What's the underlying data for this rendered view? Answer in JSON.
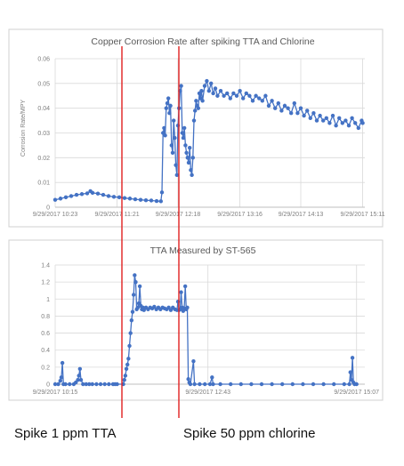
{
  "captions": {
    "left": "Spike 1 ppm TTA",
    "right": "Spike 50 ppm chlorine"
  },
  "colors": {
    "series": "#4472c4",
    "marker": "#e02020",
    "grid": "#d9d9d9",
    "axis": "#bfbfbf",
    "text": "#595959",
    "frame": "#d0d0d0"
  },
  "chart_data": [
    {
      "type": "line",
      "title": "Copper Corrosion Rate after spiking TTA and Chlorine",
      "ylabel": "Corrosion Rate/MPY",
      "xlabel": "",
      "ylim": [
        0,
        0.06
      ],
      "yticks": [
        "0",
        "0.01",
        "0.02",
        "0.03",
        "0.04",
        "0.05",
        "0.06"
      ],
      "xlim": [
        0,
        290
      ],
      "x_unit": "minutes since 9/29/2017 10:23",
      "x_ticks": [
        {
          "x": 0,
          "label": "9/29/2017 10:23"
        },
        {
          "x": 58,
          "label": "9/29/2017 11:21"
        },
        {
          "x": 115,
          "label": "9/29/2017 12:18"
        },
        {
          "x": 173,
          "label": "9/29/2017 13:16"
        },
        {
          "x": 230,
          "label": "9/29/2017 14:13"
        },
        {
          "x": 288,
          "label": "9/29/2017 15:11"
        }
      ],
      "grid": true,
      "legend": "none",
      "series": [
        {
          "points": [
            [
              0,
              0.003
            ],
            [
              5,
              0.0035
            ],
            [
              10,
              0.004
            ],
            [
              15,
              0.0045
            ],
            [
              20,
              0.005
            ],
            [
              25,
              0.0053
            ],
            [
              30,
              0.0056
            ],
            [
              33,
              0.0065
            ],
            [
              35,
              0.0058
            ],
            [
              40,
              0.0055
            ],
            [
              45,
              0.005
            ],
            [
              50,
              0.0045
            ],
            [
              55,
              0.0042
            ],
            [
              60,
              0.004
            ],
            [
              65,
              0.0037
            ],
            [
              70,
              0.0035
            ],
            [
              75,
              0.0032
            ],
            [
              80,
              0.003
            ],
            [
              85,
              0.0028
            ],
            [
              90,
              0.0027
            ],
            [
              95,
              0.0025
            ],
            [
              99,
              0.0024
            ],
            [
              100,
              0.006
            ],
            [
              101,
              0.03
            ],
            [
              102,
              0.032
            ],
            [
              103,
              0.029
            ],
            [
              104,
              0.04
            ],
            [
              105,
              0.042
            ],
            [
              106,
              0.044
            ],
            [
              107,
              0.038
            ],
            [
              108,
              0.041
            ],
            [
              109,
              0.025
            ],
            [
              110,
              0.022
            ],
            [
              111,
              0.035
            ],
            [
              112,
              0.028
            ],
            [
              113,
              0.017
            ],
            [
              114,
              0.013
            ],
            [
              115,
              0.033
            ],
            [
              116,
              0.04
            ],
            [
              117,
              0.047
            ],
            [
              118,
              0.049
            ],
            [
              119,
              0.03
            ],
            [
              120,
              0.028
            ],
            [
              121,
              0.032
            ],
            [
              122,
              0.025
            ],
            [
              123,
              0.022
            ],
            [
              124,
              0.02
            ],
            [
              125,
              0.018
            ],
            [
              126,
              0.024
            ],
            [
              127,
              0.015
            ],
            [
              128,
              0.013
            ],
            [
              129,
              0.02
            ],
            [
              130,
              0.035
            ],
            [
              131,
              0.039
            ],
            [
              132,
              0.043
            ],
            [
              133,
              0.041
            ],
            [
              134,
              0.04
            ],
            [
              135,
              0.046
            ],
            [
              136,
              0.044
            ],
            [
              137,
              0.047
            ],
            [
              138,
              0.043
            ],
            [
              140,
              0.049
            ],
            [
              142,
              0.051
            ],
            [
              144,
              0.047
            ],
            [
              146,
              0.05
            ],
            [
              148,
              0.046
            ],
            [
              150,
              0.048
            ],
            [
              152,
              0.045
            ],
            [
              155,
              0.047
            ],
            [
              158,
              0.045
            ],
            [
              161,
              0.046
            ],
            [
              164,
              0.044
            ],
            [
              167,
              0.046
            ],
            [
              170,
              0.045
            ],
            [
              173,
              0.047
            ],
            [
              176,
              0.044
            ],
            [
              179,
              0.046
            ],
            [
              182,
              0.045
            ],
            [
              185,
              0.043
            ],
            [
              188,
              0.045
            ],
            [
              191,
              0.044
            ],
            [
              194,
              0.043
            ],
            [
              197,
              0.045
            ],
            [
              200,
              0.041
            ],
            [
              203,
              0.043
            ],
            [
              206,
              0.04
            ],
            [
              209,
              0.042
            ],
            [
              212,
              0.039
            ],
            [
              215,
              0.041
            ],
            [
              218,
              0.04
            ],
            [
              221,
              0.038
            ],
            [
              224,
              0.042
            ],
            [
              227,
              0.038
            ],
            [
              230,
              0.04
            ],
            [
              233,
              0.037
            ],
            [
              236,
              0.039
            ],
            [
              239,
              0.036
            ],
            [
              242,
              0.038
            ],
            [
              245,
              0.035
            ],
            [
              248,
              0.037
            ],
            [
              251,
              0.035
            ],
            [
              254,
              0.036
            ],
            [
              257,
              0.034
            ],
            [
              260,
              0.037
            ],
            [
              263,
              0.033
            ],
            [
              266,
              0.036
            ],
            [
              269,
              0.034
            ],
            [
              272,
              0.035
            ],
            [
              275,
              0.033
            ],
            [
              278,
              0.036
            ],
            [
              281,
              0.034
            ],
            [
              284,
              0.032
            ],
            [
              287,
              0.035
            ],
            [
              288,
              0.034
            ]
          ]
        }
      ]
    },
    {
      "type": "line",
      "title": "TTA Measured by ST-565",
      "ylabel": "",
      "xlabel": "",
      "ylim": [
        0,
        1.4
      ],
      "yticks": [
        "0",
        "0.2",
        "0.4",
        "0.6",
        "0.8",
        "1",
        "1.2",
        "1.4"
      ],
      "xlim": [
        0,
        300
      ],
      "x_unit": "minutes since 9/29/2017 10:15",
      "x_ticks": [
        {
          "x": 0,
          "label": "9/29/2017 10:15"
        },
        {
          "x": 148,
          "label": "9/29/2017 12:43"
        },
        {
          "x": 292,
          "label": "9/29/2017 15:07"
        }
      ],
      "grid": true,
      "legend": "none",
      "series": [
        {
          "points": [
            [
              0,
              0
            ],
            [
              3,
              0
            ],
            [
              5,
              0.04
            ],
            [
              6,
              0.08
            ],
            [
              7,
              0.25
            ],
            [
              8,
              0
            ],
            [
              10,
              0
            ],
            [
              14,
              0
            ],
            [
              18,
              0
            ],
            [
              20,
              0.02
            ],
            [
              22,
              0.05
            ],
            [
              23,
              0.1
            ],
            [
              24,
              0.18
            ],
            [
              25,
              0.05
            ],
            [
              27,
              0
            ],
            [
              30,
              0
            ],
            [
              33,
              0
            ],
            [
              36,
              0
            ],
            [
              40,
              0
            ],
            [
              44,
              0
            ],
            [
              48,
              0
            ],
            [
              52,
              0
            ],
            [
              56,
              0
            ],
            [
              58,
              0
            ],
            [
              60,
              0
            ],
            [
              66,
              0
            ],
            [
              67,
              0.05
            ],
            [
              68,
              0.1
            ],
            [
              69,
              0.18
            ],
            [
              70,
              0.23
            ],
            [
              71,
              0.3
            ],
            [
              72,
              0.45
            ],
            [
              73,
              0.6
            ],
            [
              74,
              0.75
            ],
            [
              75,
              0.85
            ],
            [
              76,
              1.05
            ],
            [
              77,
              1.28
            ],
            [
              78,
              1.2
            ],
            [
              79,
              0.88
            ],
            [
              80,
              0.9
            ],
            [
              81,
              0.95
            ],
            [
              82,
              1.15
            ],
            [
              83,
              0.92
            ],
            [
              84,
              0.88
            ],
            [
              85,
              0.9
            ],
            [
              86,
              0.87
            ],
            [
              88,
              0.9
            ],
            [
              90,
              0.88
            ],
            [
              92,
              0.9
            ],
            [
              94,
              0.89
            ],
            [
              96,
              0.91
            ],
            [
              98,
              0.88
            ],
            [
              100,
              0.9
            ],
            [
              102,
              0.88
            ],
            [
              104,
              0.9
            ],
            [
              106,
              0.89
            ],
            [
              108,
              0.88
            ],
            [
              110,
              0.9
            ],
            [
              112,
              0.87
            ],
            [
              114,
              0.9
            ],
            [
              116,
              0.88
            ],
            [
              118,
              0.87
            ],
            [
              119,
              0.97
            ],
            [
              120,
              0.87
            ],
            [
              121,
              0.88
            ],
            [
              122,
              1.08
            ],
            [
              123,
              0.9
            ],
            [
              124,
              0.86
            ],
            [
              125,
              0.89
            ],
            [
              126,
              1.15
            ],
            [
              127,
              0.88
            ],
            [
              128,
              0.9
            ],
            [
              129,
              0.06
            ],
            [
              130,
              0.02
            ],
            [
              131,
              0
            ],
            [
              134,
              0.27
            ],
            [
              135,
              0
            ],
            [
              140,
              0
            ],
            [
              145,
              0
            ],
            [
              150,
              0
            ],
            [
              152,
              0.08
            ],
            [
              153,
              0
            ],
            [
              160,
              0
            ],
            [
              170,
              0
            ],
            [
              180,
              0
            ],
            [
              190,
              0
            ],
            [
              200,
              0
            ],
            [
              210,
              0
            ],
            [
              220,
              0
            ],
            [
              230,
              0
            ],
            [
              240,
              0
            ],
            [
              250,
              0
            ],
            [
              260,
              0
            ],
            [
              270,
              0
            ],
            [
              280,
              0
            ],
            [
              285,
              0
            ],
            [
              286,
              0.14
            ],
            [
              287,
              0.05
            ],
            [
              288,
              0.31
            ],
            [
              289,
              0.02
            ],
            [
              290,
              0
            ],
            [
              292,
              0
            ]
          ]
        }
      ]
    }
  ]
}
